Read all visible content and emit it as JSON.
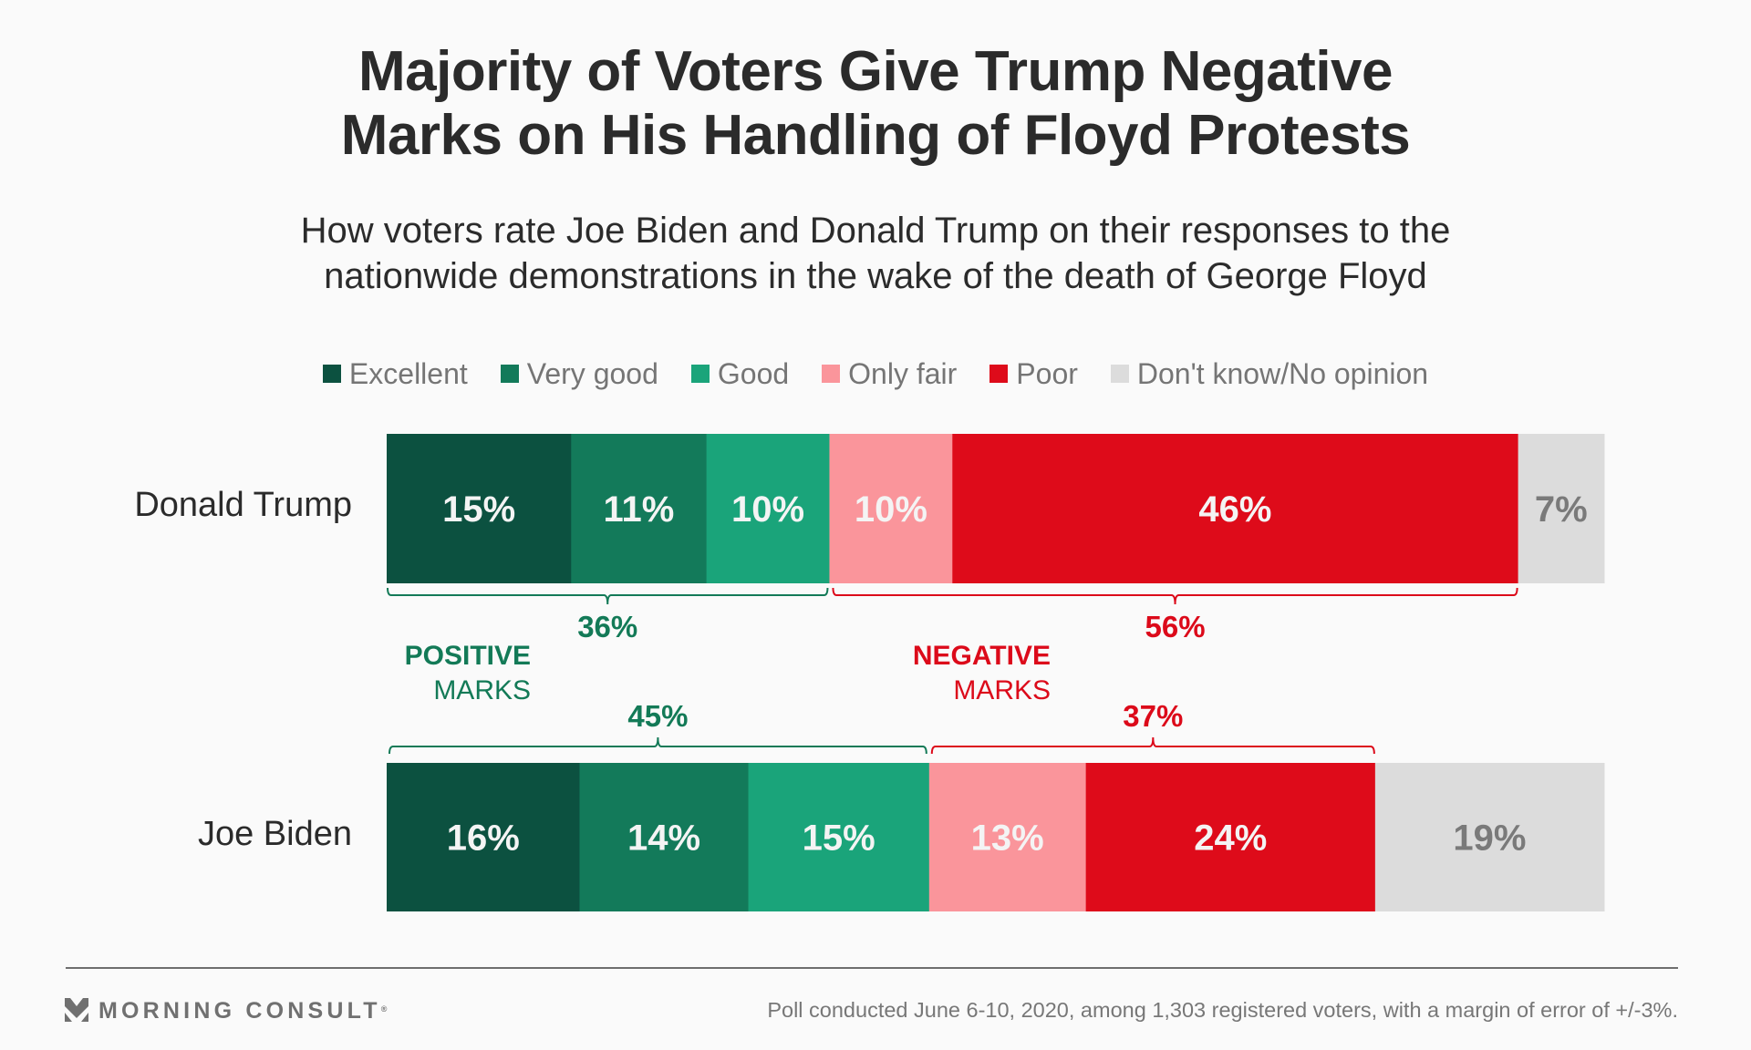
{
  "title_lines": [
    "Majority of Voters Give Trump Negative",
    "Marks on His Handling of Floyd Protests"
  ],
  "subtitle_lines": [
    "How voters rate Joe Biden and Donald Trump on their responses to the",
    "nationwide demonstrations in the wake of the death of George Floyd"
  ],
  "footer": {
    "brand": "MORNING CONSULT",
    "brand_mark": "®",
    "logo_icon": "morning-consult-chevron-logo",
    "note": "Poll conducted June 6-10, 2020, among 1,303 registered voters, with a margin of error of +/-3%."
  },
  "colors": {
    "excellent": "#0c5140",
    "very_good": "#137a5a",
    "good": "#1aa47a",
    "only_fair": "#fa959b",
    "poor": "#de0b1a",
    "dont_know": "#dcdcdc",
    "positive_text": "#137a57",
    "negative_text": "#dc0a1a",
    "segment_text_light": "#f4f4f4",
    "segment_text_dark": "#7a7a7a"
  },
  "chart_data": {
    "type": "bar",
    "orientation": "horizontal",
    "stacked": true,
    "title": "Majority of Voters Give Trump Negative Marks on His Handling of Floyd Protests",
    "subtitle": "How voters rate Joe Biden and Donald Trump on their responses to the nationwide demonstrations in the wake of the death of George Floyd",
    "legend_position": "top-center",
    "categories": [
      "Donald Trump",
      "Joe Biden"
    ],
    "series": [
      {
        "name": "Excellent",
        "key": "excellent",
        "values": [
          15,
          16
        ]
      },
      {
        "name": "Very good",
        "key": "very_good",
        "values": [
          11,
          14
        ]
      },
      {
        "name": "Good",
        "key": "good",
        "values": [
          10,
          15
        ]
      },
      {
        "name": "Only fair",
        "key": "only_fair",
        "values": [
          10,
          13
        ]
      },
      {
        "name": "Poor",
        "key": "poor",
        "values": [
          46,
          24
        ]
      },
      {
        "name": "Don't know/No opinion",
        "key": "dont_know",
        "values": [
          7,
          19
        ]
      }
    ],
    "value_suffix": "%",
    "groups": {
      "positive": {
        "label_bold": "POSITIVE",
        "label_regular": "MARKS",
        "series": [
          "Excellent",
          "Very good",
          "Good"
        ],
        "totals": [
          36,
          45
        ]
      },
      "negative": {
        "label_bold": "NEGATIVE",
        "label_regular": "MARKS",
        "series": [
          "Only fair",
          "Poor"
        ],
        "totals": [
          56,
          37
        ]
      }
    },
    "xlabel": "",
    "ylabel": "",
    "xlim": [
      0,
      100
    ],
    "grid": false
  }
}
